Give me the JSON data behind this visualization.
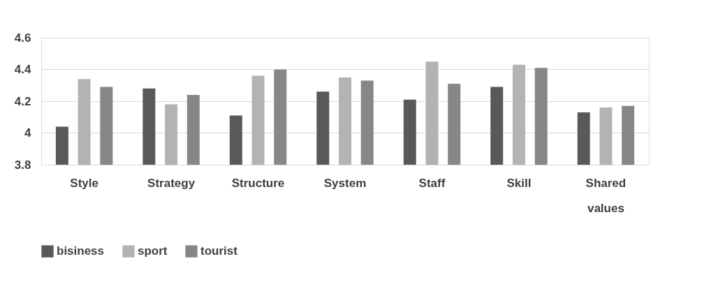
{
  "chart_data": {
    "type": "bar",
    "categories": [
      "Style",
      "Strategy",
      "Structure",
      "System",
      "Staff",
      "Skill",
      "Shared values"
    ],
    "series": [
      {
        "name": "bisiness",
        "color": "#595959",
        "values": [
          4.04,
          4.28,
          4.11,
          4.26,
          4.21,
          4.29,
          4.13
        ]
      },
      {
        "name": "sport",
        "color": "#b3b3b3",
        "values": [
          4.34,
          4.18,
          4.36,
          4.35,
          4.45,
          4.43,
          4.16
        ]
      },
      {
        "name": "tourist",
        "color": "#878787",
        "values": [
          4.29,
          4.24,
          4.4,
          4.33,
          4.31,
          4.41,
          4.17
        ]
      }
    ],
    "ylim": [
      3.8,
      4.6
    ],
    "yticks": [
      3.8,
      {
        "value": 4.0,
        "label": "4"
      },
      4.2,
      4.4,
      4.6
    ],
    "grid": "y",
    "legend": "bottom"
  }
}
